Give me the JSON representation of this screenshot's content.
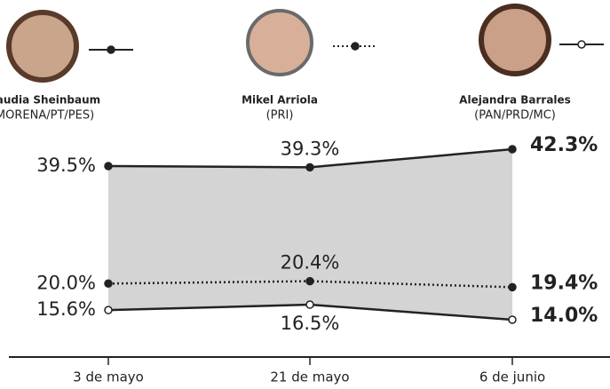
{
  "chart_data": {
    "type": "line",
    "categories": [
      "3 de mayo",
      "21 de mayo",
      "6 de junio"
    ],
    "series": [
      {
        "name": "Claudia Sheinbaum",
        "party": "(MORENA/PT/PES)",
        "color": "#222222",
        "dash": "solid",
        "marker": "filled",
        "area": true,
        "values": [
          39.5,
          39.3,
          42.3
        ],
        "value_labels": [
          "39.5%",
          "39.3%",
          "42.3%"
        ]
      },
      {
        "name": "Mikel Arriola",
        "party": "(PRI)",
        "color": "#222222",
        "dash": "dotted",
        "marker": "filled",
        "values": [
          20,
          20.4,
          19.4
        ],
        "value_labels": [
          "20.0%",
          "20.4%",
          "19.4%"
        ]
      },
      {
        "name": "Alejandra Barrales",
        "party": "(PAN/PRD/MC)",
        "color": "#222222",
        "dash": "solid",
        "marker": "open",
        "values": [
          15.6,
          16.5,
          14
        ],
        "value_labels": [
          "15.6%",
          "16.5%",
          "14.0%"
        ]
      }
    ]
  }
}
